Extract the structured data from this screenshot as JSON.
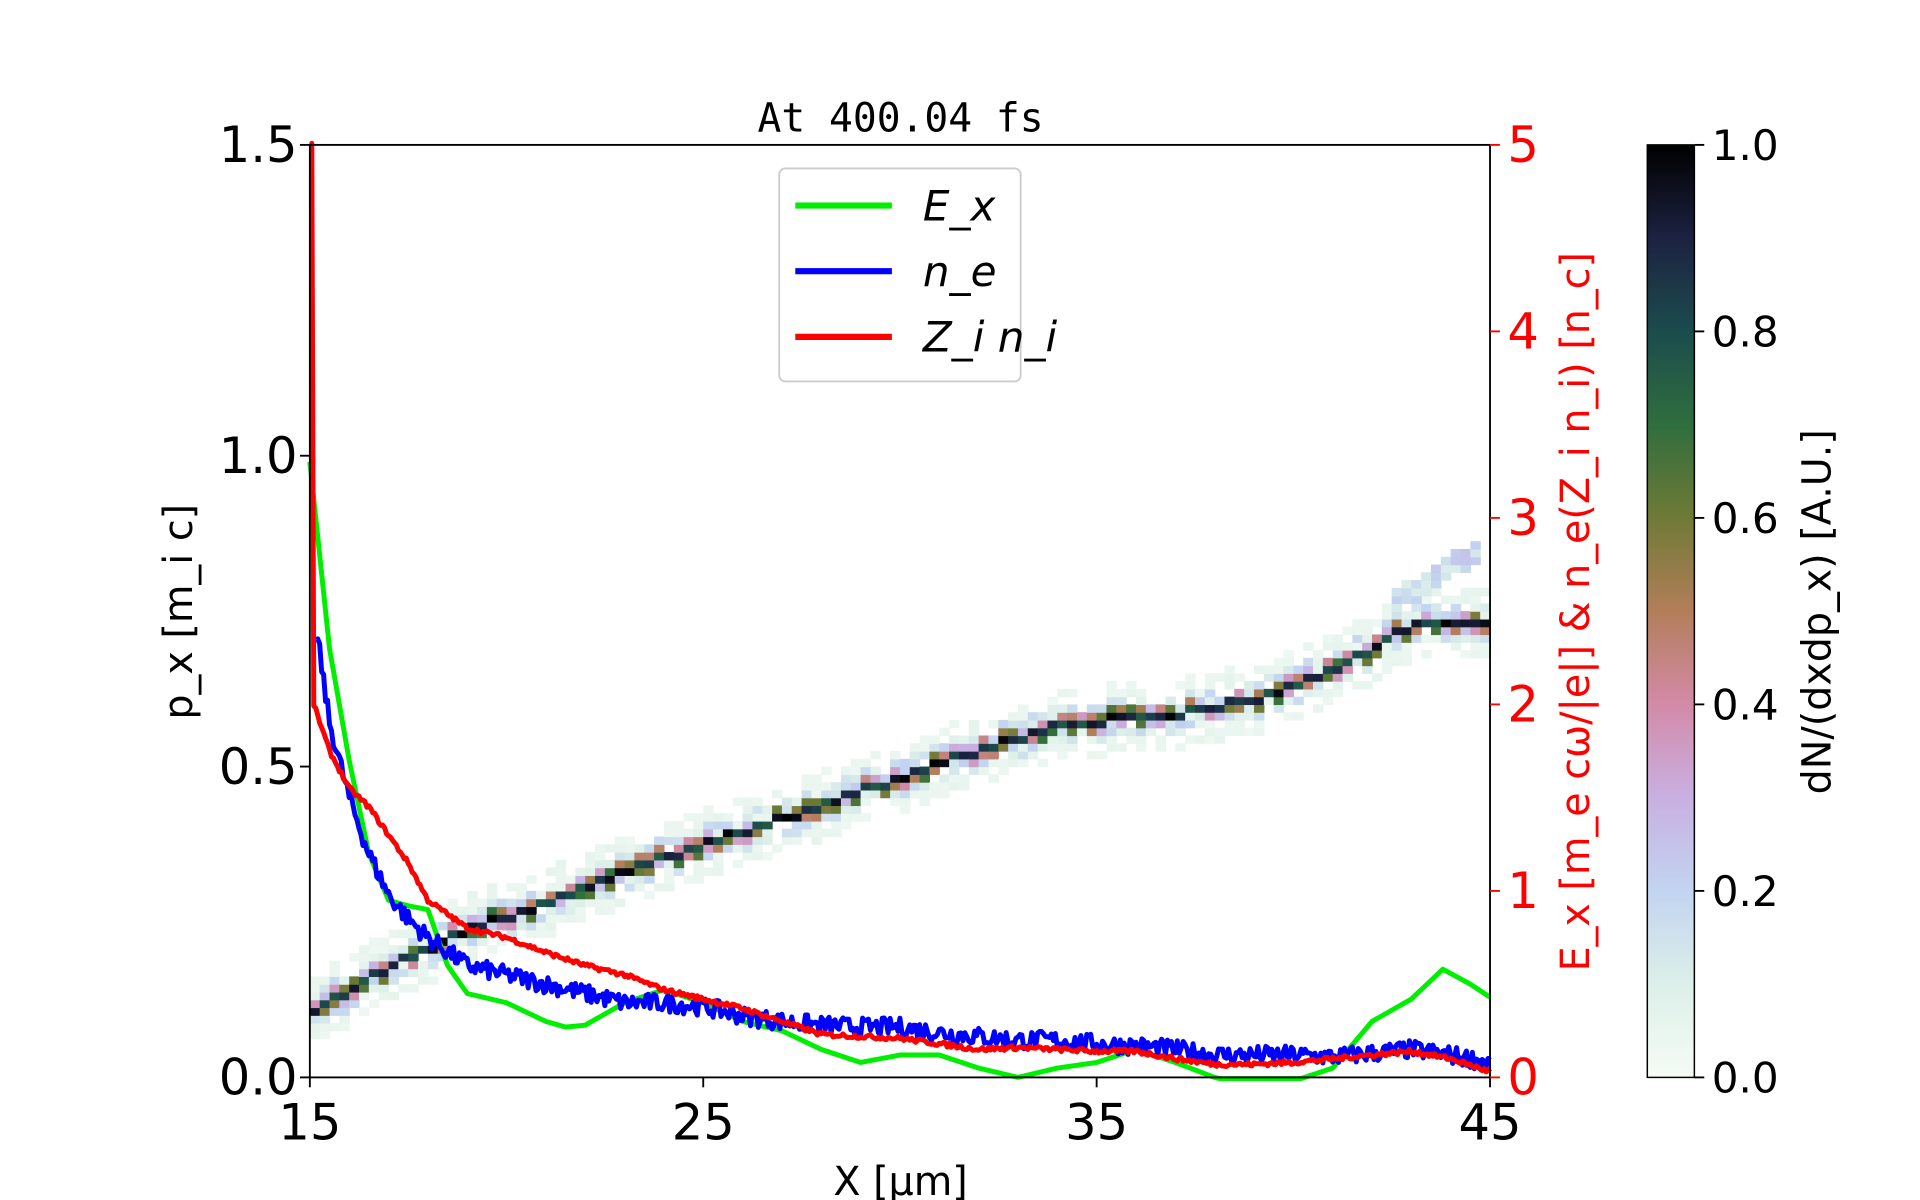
{
  "chart_data": {
    "type": "line+heatmap",
    "title": "At 400.04 fs",
    "xlabel": "X [μm]",
    "ylabel": "p_x [m_i c]",
    "ylabel_right": "E_x [m_e cω/|e|] & n_e(Z_i n_i) [n_c]",
    "colorbar_label": "dN/(dxdp_x) [A.U.]",
    "xlim": [
      15,
      45
    ],
    "ylim": [
      0,
      1.5
    ],
    "ylim_right": [
      0,
      5
    ],
    "clim": [
      0,
      1
    ],
    "x_ticks": [
      "15",
      "25",
      "35",
      "45"
    ],
    "y_ticks": [
      "0.0",
      "0.5",
      "1.0",
      "1.5"
    ],
    "y_right_ticks": [
      "0",
      "1",
      "2",
      "3",
      "4",
      "5"
    ],
    "colorbar_ticks": [
      "0.0",
      "0.2",
      "0.4",
      "0.6",
      "0.8",
      "1.0"
    ],
    "legend": {
      "placement": "upper-center",
      "entries": [
        "E_x",
        "n_e",
        "Z_i n_i"
      ]
    },
    "series": [
      {
        "name": "E_x",
        "axis": "right",
        "color": "#00ee00",
        "x": [
          15,
          15.5,
          16,
          16.5,
          17,
          17.5,
          18,
          18.5,
          19,
          20,
          21,
          21.5,
          22,
          23,
          24,
          25,
          26,
          27,
          28,
          29,
          30,
          31,
          32,
          33,
          34,
          35,
          36,
          37,
          38,
          39,
          40,
          41,
          42,
          43,
          43.8,
          44.5,
          45
        ],
        "y": [
          3.3,
          2.3,
          1.7,
          1.2,
          0.95,
          0.92,
          0.9,
          0.6,
          0.45,
          0.4,
          0.3,
          0.27,
          0.28,
          0.4,
          0.47,
          0.4,
          0.3,
          0.25,
          0.15,
          0.08,
          0.12,
          0.12,
          0.05,
          0.0,
          0.05,
          0.08,
          0.15,
          0.08,
          0.0,
          -0.05,
          -0.02,
          0.05,
          0.3,
          0.42,
          0.58,
          0.5,
          0.43
        ]
      },
      {
        "name": "n_e",
        "axis": "right",
        "color": "#0000ff",
        "x": [
          15.2,
          15.5,
          16,
          16.5,
          17,
          17.5,
          18,
          19,
          20,
          21,
          22,
          23,
          24,
          25,
          26,
          27,
          28,
          29,
          30,
          31,
          32,
          33,
          34,
          35,
          36,
          37,
          38,
          39,
          40,
          41,
          42,
          43,
          44,
          45
        ],
        "y": [
          2.35,
          1.9,
          1.5,
          1.2,
          0.98,
          0.85,
          0.75,
          0.6,
          0.55,
          0.5,
          0.45,
          0.4,
          0.4,
          0.38,
          0.33,
          0.3,
          0.28,
          0.27,
          0.27,
          0.24,
          0.22,
          0.2,
          0.2,
          0.18,
          0.17,
          0.15,
          0.12,
          0.12,
          0.12,
          0.11,
          0.13,
          0.15,
          0.12,
          0.08
        ]
      },
      {
        "name": "Z_i n_i",
        "axis": "right",
        "color": "#ff0000",
        "x": [
          15.05,
          15.1,
          15.5,
          16,
          16.5,
          17,
          17.5,
          18,
          19,
          20,
          21,
          22,
          23,
          24,
          25,
          26,
          27,
          28,
          29,
          30,
          31,
          32,
          33,
          34,
          35,
          36,
          37,
          38,
          39,
          40,
          41,
          42,
          43,
          44,
          45
        ],
        "y": [
          5,
          2.0,
          1.75,
          1.55,
          1.45,
          1.3,
          1.15,
          0.95,
          0.8,
          0.75,
          0.67,
          0.6,
          0.55,
          0.47,
          0.42,
          0.37,
          0.3,
          0.23,
          0.22,
          0.21,
          0.18,
          0.15,
          0.16,
          0.15,
          0.14,
          0.14,
          0.1,
          0.07,
          0.07,
          0.08,
          0.1,
          0.12,
          0.14,
          0.1,
          0.03
        ]
      }
    ],
    "heatmap_ridge": {
      "x": [
        15,
        17,
        19,
        22,
        25,
        28,
        31,
        34,
        37,
        39,
        41,
        43,
        45
      ],
      "px": [
        0.1,
        0.17,
        0.23,
        0.3,
        0.37,
        0.43,
        0.5,
        0.56,
        0.58,
        0.6,
        0.65,
        0.72,
        0.73
      ]
    },
    "heatmap_upper_branch": {
      "x": [
        42.5,
        43.5,
        44.5
      ],
      "px": [
        0.76,
        0.8,
        0.84
      ]
    }
  }
}
